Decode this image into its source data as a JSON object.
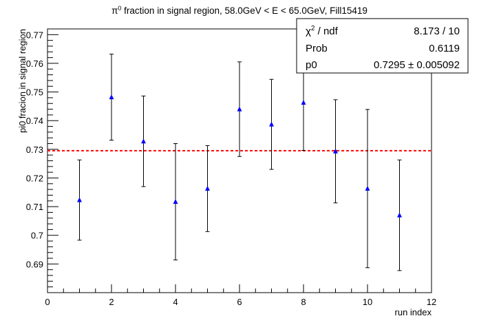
{
  "chart_data": {
    "type": "scatter",
    "title_prefix": "π",
    "title_sup": "0",
    "title_suffix": " fraction in signal region, 58.0GeV < E < 65.0GeV, Fill15419",
    "xlabel": "run index",
    "ylabel": "pi0 fracion in signal region",
    "xlim": [
      0,
      12
    ],
    "ylim": [
      0.68,
      0.772
    ],
    "x_ticks": [
      0,
      2,
      4,
      6,
      8,
      10,
      12
    ],
    "x_tick_labels": [
      "0",
      "2",
      "4",
      "6",
      "8",
      "10",
      "12"
    ],
    "y_ticks": [
      0.69,
      0.7,
      0.71,
      0.72,
      0.73,
      0.74,
      0.75,
      0.76,
      0.77
    ],
    "y_tick_labels": [
      "0.69",
      "0.7",
      "0.71",
      "0.72",
      "0.73",
      "0.74",
      "0.75",
      "0.76",
      "0.77"
    ],
    "series": [
      {
        "marker": "triangle-up",
        "color": "#0000ff",
        "x": [
          1,
          2,
          3,
          4,
          5,
          6,
          7,
          8,
          9,
          10,
          11
        ],
        "y": [
          0.7123,
          0.7482,
          0.7328,
          0.7117,
          0.7163,
          0.744,
          0.7387,
          0.7463,
          0.7293,
          0.7163,
          0.707
        ],
        "err": [
          0.014,
          0.015,
          0.0158,
          0.0203,
          0.015,
          0.0165,
          0.0157,
          0.0167,
          0.018,
          0.0276,
          0.0193
        ]
      }
    ],
    "fit": {
      "value": 0.7295,
      "color": "#ff0000",
      "style": "dashed"
    },
    "stats": {
      "rows": [
        {
          "label_main": "χ",
          "label_sup": "2",
          "label_rest": " / ndf",
          "value": "8.173 / 10"
        },
        {
          "label_main": "Prob",
          "label_sup": "",
          "label_rest": "",
          "value": "0.6119"
        },
        {
          "label_main": "p0",
          "label_sup": "",
          "label_rest": "",
          "value": "0.7295 ± 0.005092"
        }
      ]
    }
  }
}
